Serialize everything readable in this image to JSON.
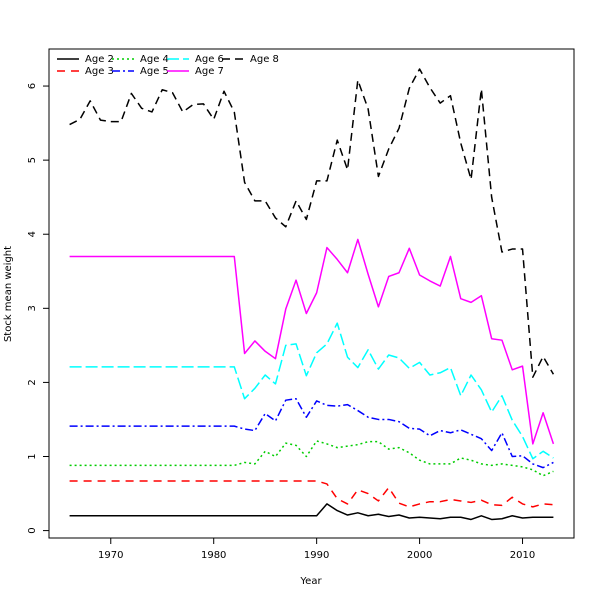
{
  "chart_data": {
    "type": "line",
    "title": "",
    "xlabel": "Year",
    "ylabel": "Stock mean weight",
    "xlim": [
      1964,
      2015
    ],
    "ylim": [
      -0.1,
      6.5
    ],
    "x_ticks": [
      1970,
      1980,
      1990,
      2000,
      2010
    ],
    "y_ticks": [
      0,
      1,
      2,
      3,
      4,
      5,
      6
    ],
    "grid": false,
    "legend_position": "top-left",
    "x": [
      1966,
      1967,
      1968,
      1969,
      1970,
      1971,
      1972,
      1973,
      1974,
      1975,
      1976,
      1977,
      1978,
      1979,
      1980,
      1981,
      1982,
      1983,
      1984,
      1985,
      1986,
      1987,
      1988,
      1989,
      1990,
      1991,
      1992,
      1993,
      1994,
      1995,
      1996,
      1997,
      1998,
      1999,
      2000,
      2001,
      2002,
      2003,
      2004,
      2005,
      2006,
      2007,
      2008,
      2009,
      2010,
      2011,
      2012,
      2013
    ],
    "series": [
      {
        "name": "Age 2",
        "color": "#000000",
        "dash": "",
        "values": [
          0.2,
          0.2,
          0.2,
          0.2,
          0.2,
          0.2,
          0.2,
          0.2,
          0.2,
          0.2,
          0.2,
          0.2,
          0.2,
          0.2,
          0.2,
          0.2,
          0.2,
          0.2,
          0.2,
          0.2,
          0.2,
          0.2,
          0.2,
          0.2,
          0.2,
          0.36,
          0.27,
          0.21,
          0.24,
          0.2,
          0.22,
          0.19,
          0.21,
          0.17,
          0.18,
          0.17,
          0.16,
          0.18,
          0.18,
          0.15,
          0.2,
          0.15,
          0.16,
          0.2,
          0.17,
          0.18,
          0.18,
          0.18
        ]
      },
      {
        "name": "Age 3",
        "color": "#ff0000",
        "dash": "8,6",
        "values": [
          0.67,
          0.67,
          0.67,
          0.67,
          0.67,
          0.67,
          0.67,
          0.67,
          0.67,
          0.67,
          0.67,
          0.67,
          0.67,
          0.67,
          0.67,
          0.67,
          0.67,
          0.67,
          0.67,
          0.67,
          0.67,
          0.67,
          0.67,
          0.67,
          0.67,
          0.63,
          0.43,
          0.36,
          0.55,
          0.5,
          0.4,
          0.58,
          0.37,
          0.32,
          0.36,
          0.39,
          0.39,
          0.42,
          0.4,
          0.38,
          0.41,
          0.35,
          0.34,
          0.45,
          0.36,
          0.32,
          0.36,
          0.35
        ]
      },
      {
        "name": "Age 4",
        "color": "#00cd00",
        "dash": "2,3",
        "values": [
          0.88,
          0.88,
          0.88,
          0.88,
          0.88,
          0.88,
          0.88,
          0.88,
          0.88,
          0.88,
          0.88,
          0.88,
          0.88,
          0.88,
          0.88,
          0.88,
          0.88,
          0.92,
          0.9,
          1.07,
          1.0,
          1.18,
          1.15,
          1.0,
          1.21,
          1.17,
          1.12,
          1.14,
          1.16,
          1.2,
          1.2,
          1.1,
          1.12,
          1.05,
          0.95,
          0.9,
          0.9,
          0.9,
          0.98,
          0.95,
          0.9,
          0.88,
          0.9,
          0.88,
          0.86,
          0.82,
          0.74,
          0.8
        ]
      },
      {
        "name": "Age 5",
        "color": "#0000ff",
        "dash": "8,3,2,3",
        "values": [
          1.41,
          1.41,
          1.41,
          1.41,
          1.41,
          1.41,
          1.41,
          1.41,
          1.41,
          1.41,
          1.41,
          1.41,
          1.41,
          1.41,
          1.41,
          1.41,
          1.41,
          1.37,
          1.35,
          1.58,
          1.48,
          1.76,
          1.78,
          1.53,
          1.75,
          1.69,
          1.68,
          1.7,
          1.62,
          1.53,
          1.5,
          1.5,
          1.47,
          1.38,
          1.37,
          1.28,
          1.35,
          1.32,
          1.36,
          1.3,
          1.24,
          1.08,
          1.32,
          1.0,
          1.01,
          0.9,
          0.85,
          0.92
        ]
      },
      {
        "name": "Age 6",
        "color": "#00ffff",
        "dash": "12,4",
        "values": [
          2.21,
          2.21,
          2.21,
          2.21,
          2.21,
          2.21,
          2.21,
          2.21,
          2.21,
          2.21,
          2.21,
          2.21,
          2.21,
          2.21,
          2.21,
          2.21,
          2.21,
          1.78,
          1.92,
          2.1,
          1.98,
          2.5,
          2.52,
          2.09,
          2.4,
          2.52,
          2.8,
          2.34,
          2.2,
          2.44,
          2.18,
          2.37,
          2.33,
          2.19,
          2.27,
          2.1,
          2.13,
          2.2,
          1.82,
          2.1,
          1.9,
          1.6,
          1.82,
          1.49,
          1.27,
          0.97,
          1.07,
          0.98
        ]
      },
      {
        "name": "Age 7",
        "color": "#ff00ff",
        "dash": "",
        "values": [
          3.7,
          3.7,
          3.7,
          3.7,
          3.7,
          3.7,
          3.7,
          3.7,
          3.7,
          3.7,
          3.7,
          3.7,
          3.7,
          3.7,
          3.7,
          3.7,
          3.7,
          2.39,
          2.56,
          2.42,
          2.32,
          2.99,
          3.38,
          2.93,
          3.21,
          3.82,
          3.66,
          3.48,
          3.93,
          3.46,
          3.02,
          3.43,
          3.48,
          3.81,
          3.45,
          3.37,
          3.3,
          3.7,
          3.13,
          3.08,
          3.17,
          2.59,
          2.57,
          2.17,
          2.22,
          1.17,
          1.59,
          1.17
        ]
      },
      {
        "name": "Age 8",
        "color": "#000000",
        "dash": "8,5",
        "values": [
          5.48,
          5.55,
          5.8,
          5.54,
          5.52,
          5.52,
          5.9,
          5.7,
          5.65,
          5.95,
          5.91,
          5.65,
          5.75,
          5.76,
          5.55,
          5.93,
          5.65,
          4.7,
          4.45,
          4.45,
          4.22,
          4.1,
          4.45,
          4.2,
          4.72,
          4.72,
          5.27,
          4.87,
          6.08,
          5.69,
          4.78,
          5.15,
          5.43,
          5.97,
          6.23,
          5.98,
          5.77,
          5.87,
          5.23,
          4.74,
          5.96,
          4.5,
          3.76,
          3.8,
          3.8,
          2.07,
          2.35,
          2.11
        ]
      }
    ]
  }
}
